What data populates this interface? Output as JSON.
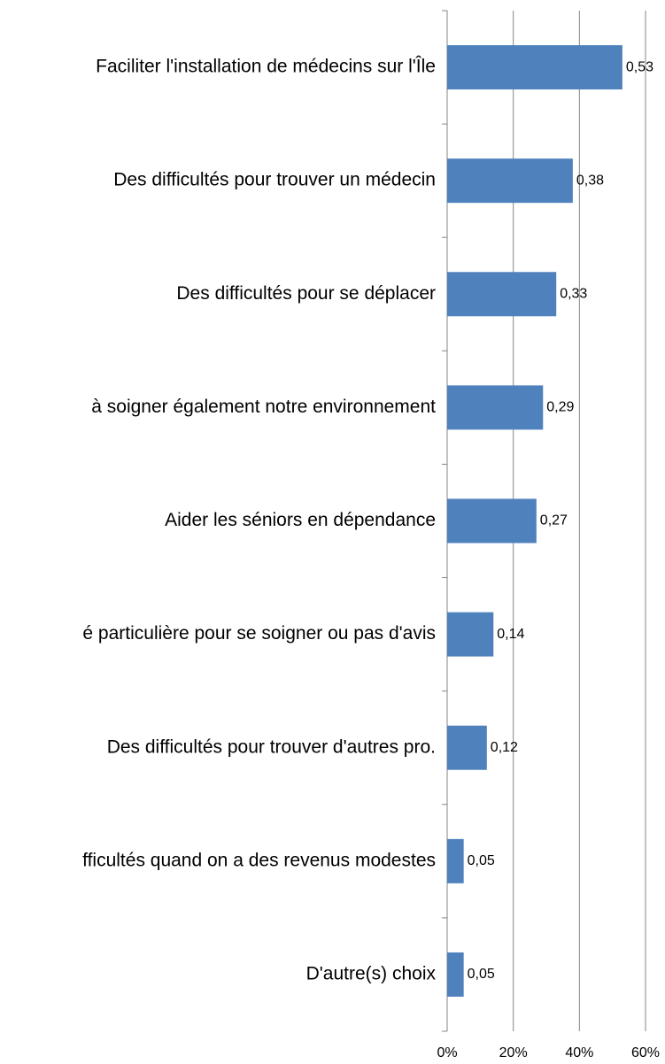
{
  "chart_data": {
    "type": "bar",
    "orientation": "horizontal",
    "categories": [
      "Faciliter l'installation de médecins sur l'Île",
      "Des difficultés pour trouver un médecin",
      "Des difficultés pour se déplacer",
      "à soigner également notre environnement",
      "Aider les séniors en dépendance",
      "é particulière pour se soigner ou pas d'avis",
      "Des difficultés pour trouver d'autres pro.",
      "fficultés quand on a des revenus modestes",
      "D'autre(s) choix"
    ],
    "values": [
      53,
      38,
      33,
      29,
      27,
      14,
      12,
      5,
      5
    ],
    "value_labels": [
      "0,53",
      "0,38",
      "0,33",
      "0,29",
      "0,27",
      "0,14",
      "0,12",
      "0,05",
      "0,05"
    ],
    "color": "#4f81bd",
    "xlim": [
      0,
      60
    ],
    "xticks": [
      {
        "value": 0,
        "label": "0%"
      },
      {
        "value": 20,
        "label": "20%"
      },
      {
        "value": 40,
        "label": "40%"
      },
      {
        "value": 60,
        "label": "60%"
      }
    ],
    "grid": true
  }
}
